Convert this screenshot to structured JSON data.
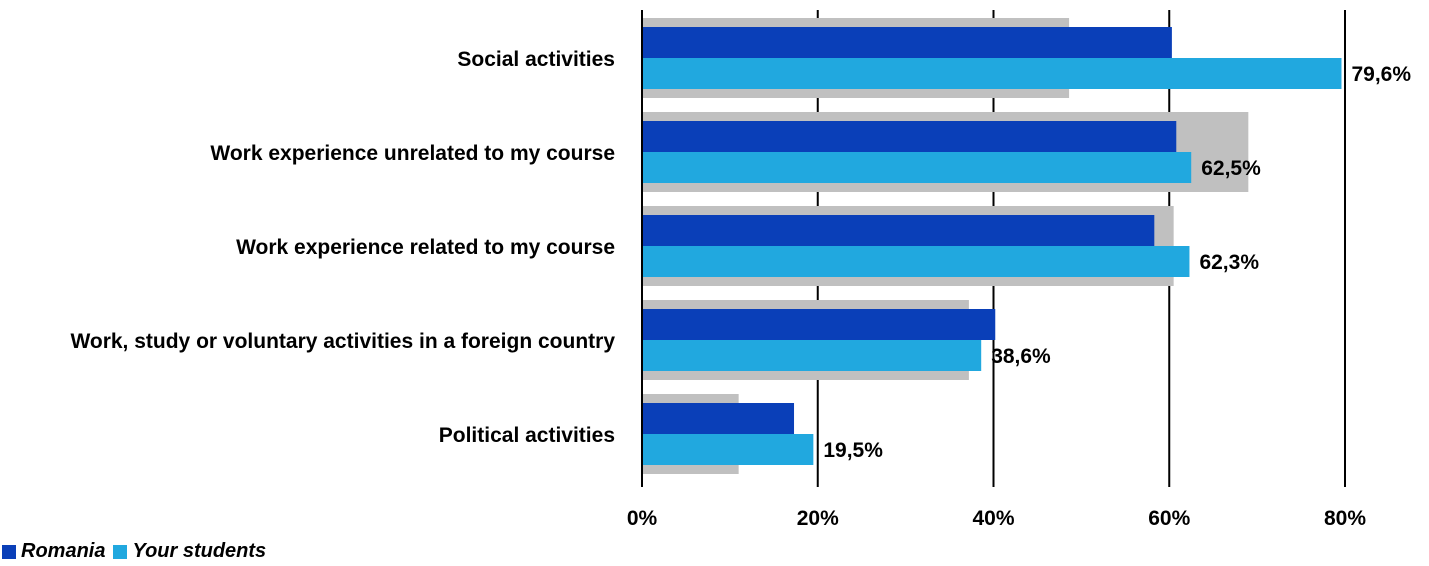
{
  "chart_data": {
    "type": "bar",
    "orientation": "horizontal",
    "categories": [
      "Social activities",
      "Work experience unrelated to my course",
      "Work experience related to my course",
      "Work, study or voluntary activities in a foreign country",
      "Political activities"
    ],
    "series": [
      {
        "name": "",
        "color": "#c0c0c0",
        "values": [
          48.6,
          69.0,
          60.5,
          37.2,
          11.0
        ]
      },
      {
        "name": "Romania",
        "color": "#0a3fb8",
        "values": [
          60.3,
          60.8,
          58.3,
          40.2,
          17.3
        ]
      },
      {
        "name": "Your students",
        "color": "#21a8df",
        "values": [
          79.6,
          62.5,
          62.3,
          38.6,
          19.5
        ]
      }
    ],
    "data_labels": [
      "79,6%",
      "62,5%",
      "62,3%",
      "38,6%",
      "19,5%"
    ],
    "x_ticks": [
      "0%",
      "20%",
      "40%",
      "60%",
      "80%"
    ],
    "x_tick_values": [
      0,
      20,
      40,
      60,
      80
    ],
    "xlim": [
      0,
      80
    ],
    "grid": true,
    "legend_position": "bottom-left",
    "title": "",
    "xlabel": "",
    "ylabel": ""
  },
  "legend": {
    "items": [
      {
        "label": "Romania",
        "color": "#0a3fb8"
      },
      {
        "label": "Your students",
        "color": "#21a8df"
      }
    ]
  }
}
